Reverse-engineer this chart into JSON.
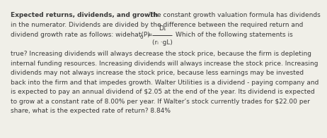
{
  "background_color": "#f0efe8",
  "text_color": "#3a3a3a",
  "line1": "Expected returns, dividends, and growth The constant growth valuation formula has dividends",
  "line2": "in the numerator. Dividends are divided by the difference between the required return and",
  "line3_left": "dividend growth rate as follows: widehat(P)",
  "line3_sub0": "0",
  "line3_eq": "=",
  "line3_num": "D₁",
  "line3_den": "(rᵢ ·gL)",
  "line3_right": "Which of the following statements is",
  "line4": "true? Increasing dividends will always decrease the stock price, because the firm is depleting",
  "line5": "internal funding resources. Increasing dividends will always increase the stock price. Increasing",
  "line6": "dividends may not always increase the stock price, because less earnings may be invested",
  "line7": "back into the firm and that impedes growth. Walter Utilities is a dividend - paying company and",
  "line8": "is expected to pay an annual dividend of $2.05 at the end of the year. Its dividend is expected",
  "line9": "to grow at a constant rate of 8.00% per year. If Walter’s stock currently trades for $22.00 per",
  "line10": "share, what is the expected rate of return? 8.84%",
  "fs": 6.5
}
